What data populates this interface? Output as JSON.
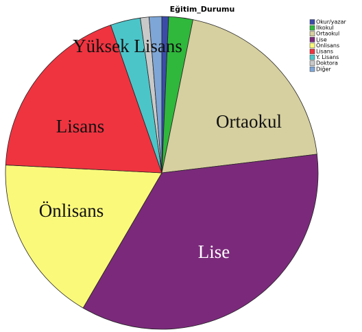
{
  "chart_data": {
    "type": "pie",
    "title": "Eğitim_Durumu",
    "categories": [
      "Okur/yazar",
      "İlkokul",
      "Ortaokul",
      "Lise",
      "Önlisans",
      "Lisans",
      "Y. Lisans",
      "Doktora",
      "Diğer"
    ],
    "values": [
      0.7,
      2.5,
      19.9,
      35.3,
      17.4,
      18.9,
      3.1,
      0.9,
      1.3
    ],
    "colors": [
      "#3b4ca8",
      "#2fb83c",
      "#d6cf9f",
      "#7b2a7b",
      "#fbf97a",
      "#ef3440",
      "#4cc5c9",
      "#c9c9c9",
      "#7ea6d6"
    ],
    "slice_labels": [
      null,
      null,
      "Ortaokul",
      "Lise",
      "Önlisans",
      "Lisans",
      "Yüksek Lisans",
      null,
      null
    ],
    "legend": "upper right"
  }
}
